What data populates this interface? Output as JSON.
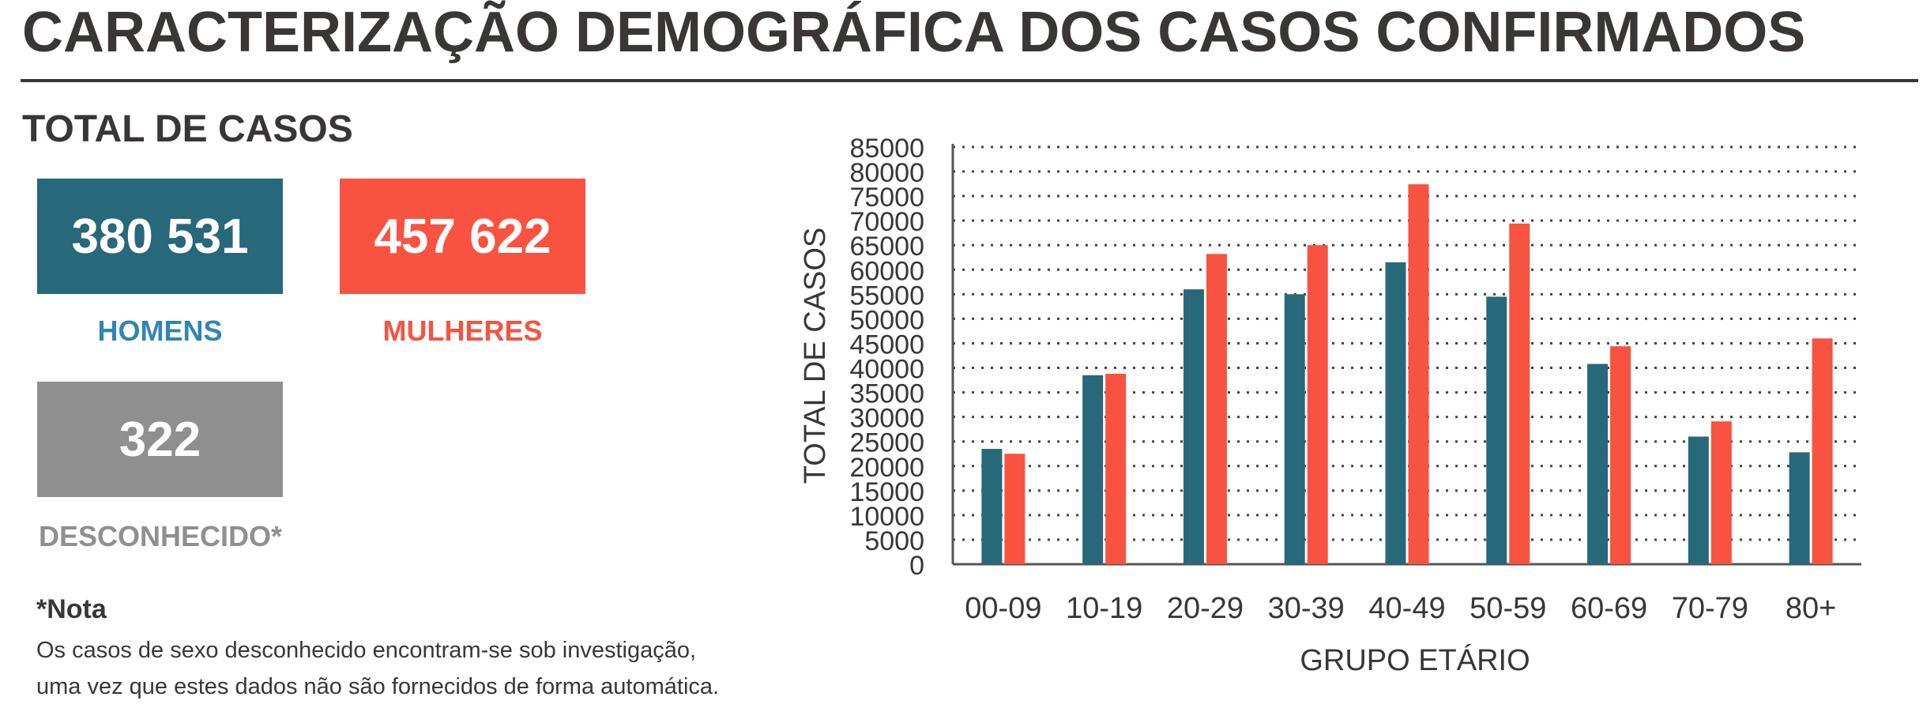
{
  "header": {
    "title": "CARACTERIZAÇÃO DEMOGRÁFICA DOS CASOS CONFIRMADOS"
  },
  "totals": {
    "section_title": "TOTAL DE CASOS",
    "men": {
      "value": "380 531",
      "label": "HOMENS",
      "color": "#27687a",
      "label_color": "#2f86b5"
    },
    "women": {
      "value": "457 622",
      "label": "MULHERES",
      "color": "#f85240",
      "label_color": "#f85240"
    },
    "unknown": {
      "value": "322",
      "label": "DESCONHECIDO*",
      "color": "#8f8f8f",
      "label_color": "#8f8f8f"
    }
  },
  "note": {
    "title": "*Nota",
    "line1": "Os casos de sexo desconhecido encontram-se sob investigação,",
    "line2": "uma vez que estes dados não são fornecidos de forma automática."
  },
  "chart_data": {
    "type": "bar",
    "categories": [
      "00-09",
      "10-19",
      "20-29",
      "30-39",
      "40-49",
      "50-59",
      "60-69",
      "70-79",
      "80+"
    ],
    "series": [
      {
        "name": "",
        "color": "#27687a",
        "values": [
          23500,
          38500,
          56000,
          55000,
          61500,
          54500,
          40800,
          26000,
          22800
        ]
      },
      {
        "name": "",
        "color": "#f85240",
        "values": [
          22500,
          38800,
          63200,
          65000,
          77400,
          69400,
          44400,
          29100,
          46000
        ]
      }
    ],
    "xlabel": "GRUPO ETÁRIO",
    "ylabel": "TOTAL DE CASOS",
    "ylim": [
      0,
      85000
    ],
    "yticks": [
      0,
      5000,
      10000,
      15000,
      20000,
      25000,
      30000,
      35000,
      40000,
      45000,
      50000,
      55000,
      60000,
      65000,
      70000,
      75000,
      80000,
      85000
    ],
    "grid": true
  }
}
